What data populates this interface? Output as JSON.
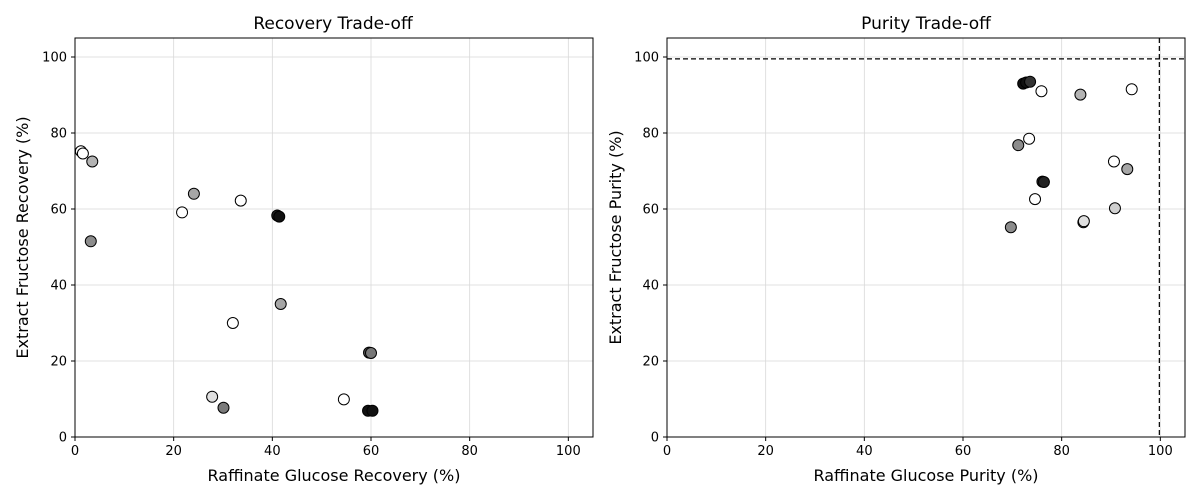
{
  "chart_data": [
    {
      "type": "scatter",
      "title": "Recovery Trade-off",
      "xlabel": "Raffinate Glucose Recovery (%)",
      "ylabel": "Extract Fructose Recovery (%)",
      "xlim": [
        0,
        105
      ],
      "ylim": [
        0,
        105
      ],
      "xticks": [
        0,
        20,
        40,
        60,
        80,
        100
      ],
      "yticks": [
        0,
        20,
        40,
        60,
        80,
        100
      ],
      "grid": true,
      "reference_lines": [],
      "points": [
        {
          "x": 1.2,
          "y": 75.2,
          "color": "#ffffff"
        },
        {
          "x": 1.6,
          "y": 74.6,
          "color": "#ffffff"
        },
        {
          "x": 3.5,
          "y": 72.5,
          "color": "#b3b3b3"
        },
        {
          "x": 3.2,
          "y": 51.5,
          "color": "#8c8c8c"
        },
        {
          "x": 21.7,
          "y": 59.1,
          "color": "#ffffff"
        },
        {
          "x": 24.1,
          "y": 64.0,
          "color": "#a6a6a6"
        },
        {
          "x": 33.6,
          "y": 62.2,
          "color": "#ffffff"
        },
        {
          "x": 41.0,
          "y": 58.3,
          "color": "#222222"
        },
        {
          "x": 41.4,
          "y": 58.0,
          "color": "#111111"
        },
        {
          "x": 41.7,
          "y": 35.0,
          "color": "#a6a6a6"
        },
        {
          "x": 32.0,
          "y": 30.0,
          "color": "#ffffff"
        },
        {
          "x": 59.6,
          "y": 22.2,
          "color": "#555555"
        },
        {
          "x": 60.0,
          "y": 22.1,
          "color": "#777777"
        },
        {
          "x": 27.8,
          "y": 10.6,
          "color": "#e0e0e0"
        },
        {
          "x": 30.1,
          "y": 7.7,
          "color": "#7a7a7a"
        },
        {
          "x": 54.5,
          "y": 9.9,
          "color": "#ffffff"
        },
        {
          "x": 59.4,
          "y": 6.9,
          "color": "#111111"
        },
        {
          "x": 60.3,
          "y": 6.9,
          "color": "#111111"
        }
      ]
    },
    {
      "type": "scatter",
      "title": "Purity Trade-off",
      "xlabel": "Raffinate Glucose Purity (%)",
      "ylabel": "Extract Fructose Purity (%)",
      "xlim": [
        0,
        105
      ],
      "ylim": [
        0,
        105
      ],
      "xticks": [
        0,
        20,
        40,
        60,
        80,
        100
      ],
      "yticks": [
        0,
        20,
        40,
        60,
        80,
        100
      ],
      "grid": true,
      "reference_lines": [
        {
          "orientation": "horizontal",
          "value": 99.5
        },
        {
          "orientation": "vertical",
          "value": 99.8
        }
      ],
      "points": [
        {
          "x": 72.2,
          "y": 93.0,
          "color": "#111111"
        },
        {
          "x": 72.8,
          "y": 93.3,
          "color": "#111111"
        },
        {
          "x": 73.6,
          "y": 93.5,
          "color": "#333333"
        },
        {
          "x": 75.9,
          "y": 91.0,
          "color": "#ffffff"
        },
        {
          "x": 83.8,
          "y": 90.1,
          "color": "#b3b3b3"
        },
        {
          "x": 94.2,
          "y": 91.5,
          "color": "#ffffff"
        },
        {
          "x": 73.4,
          "y": 78.5,
          "color": "#ffffff"
        },
        {
          "x": 71.2,
          "y": 76.8,
          "color": "#8c8c8c"
        },
        {
          "x": 90.6,
          "y": 72.5,
          "color": "#ffffff"
        },
        {
          "x": 93.3,
          "y": 70.5,
          "color": "#a6a6a6"
        },
        {
          "x": 76.1,
          "y": 67.2,
          "color": "#333333"
        },
        {
          "x": 76.4,
          "y": 67.1,
          "color": "#222222"
        },
        {
          "x": 74.6,
          "y": 62.6,
          "color": "#ffffff"
        },
        {
          "x": 90.8,
          "y": 60.2,
          "color": "#d0d0d0"
        },
        {
          "x": 84.4,
          "y": 56.5,
          "color": "#777777"
        },
        {
          "x": 84.5,
          "y": 56.8,
          "color": "#e0e0e0"
        },
        {
          "x": 69.7,
          "y": 55.2,
          "color": "#8c8c8c"
        }
      ]
    }
  ]
}
